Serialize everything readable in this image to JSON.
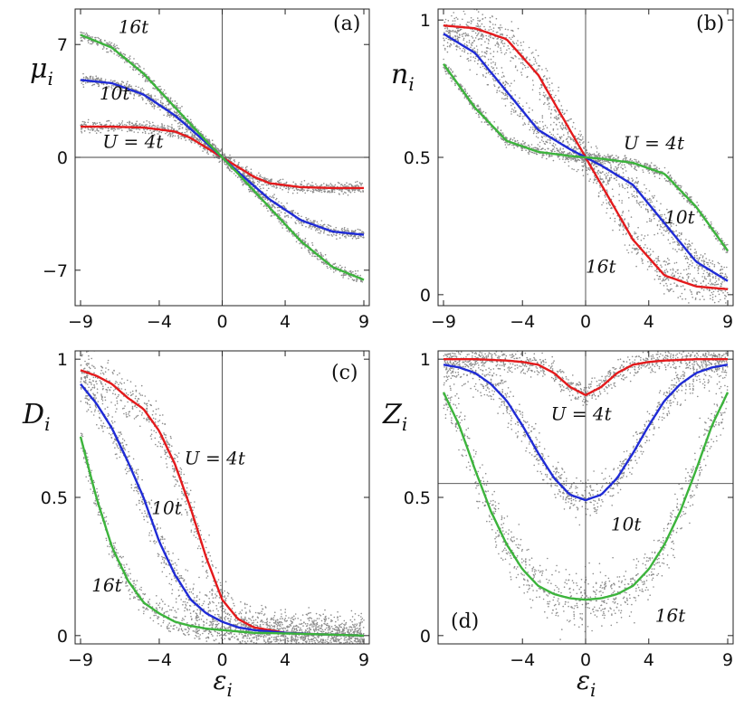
{
  "chart_data": [
    {
      "panel": "(a)",
      "type": "line",
      "ylabel": "μ",
      "ylabel_sub": "i",
      "xlabel": "",
      "xlim": [
        -9,
        9
      ],
      "ylim": [
        -9.2,
        9.2
      ],
      "xticks": [
        {
          "v": -9,
          "label": "−9"
        },
        {
          "v": -4,
          "label": "−4"
        },
        {
          "v": 0,
          "label": "0"
        },
        {
          "v": 4,
          "label": "4"
        },
        {
          "v": 9,
          "label": "9"
        }
      ],
      "yticks": [
        {
          "v": 7,
          "label": "7"
        },
        {
          "v": 0,
          "label": "0"
        },
        {
          "v": -7,
          "label": "−7"
        }
      ],
      "ref_x": 0,
      "ref_y": 0,
      "series": [
        {
          "name": "U = 4t",
          "color": "#e41a1c",
          "scatter_spread": 0.35,
          "x": [
            -9,
            -7,
            -5,
            -3,
            -2,
            -1,
            0,
            1,
            2,
            3,
            5,
            7,
            9
          ],
          "y": [
            1.9,
            1.9,
            1.85,
            1.6,
            1.2,
            0.6,
            0,
            -0.6,
            -1.2,
            -1.6,
            -1.85,
            -1.9,
            -1.9
          ]
        },
        {
          "name": "10t",
          "color": "#1f2bd6",
          "scatter_spread": 0.35,
          "x": [
            -9,
            -7,
            -5,
            -3,
            -1,
            0,
            1,
            3,
            5,
            7,
            9
          ],
          "y": [
            4.8,
            4.6,
            3.9,
            2.6,
            0.9,
            0,
            -0.9,
            -2.6,
            -3.9,
            -4.6,
            -4.8
          ]
        },
        {
          "name": "16t",
          "color": "#3cb43c",
          "scatter_spread": 0.35,
          "x": [
            -9,
            -7,
            -5,
            -3,
            -1,
            0,
            1,
            3,
            5,
            7,
            9
          ],
          "y": [
            7.6,
            6.8,
            5.2,
            3.1,
            1.0,
            0,
            -1.0,
            -3.1,
            -5.2,
            -6.8,
            -7.6
          ]
        }
      ],
      "annotations": [
        {
          "text": "16t",
          "x": -6.6,
          "y": 7.7
        },
        {
          "text": "10t",
          "x": -7.8,
          "y": 3.6
        },
        {
          "text": "U = 4t",
          "x": -7.6,
          "y": 0.6
        }
      ]
    },
    {
      "panel": "(b)",
      "type": "line",
      "ylabel": "n",
      "ylabel_sub": "i",
      "xlabel": "",
      "xlim": [
        -9,
        9
      ],
      "ylim": [
        -0.04,
        1.04
      ],
      "xticks": [
        {
          "v": -9,
          "label": "−9"
        },
        {
          "v": -4,
          "label": "−4"
        },
        {
          "v": 0,
          "label": "0"
        },
        {
          "v": 4,
          "label": "4"
        },
        {
          "v": 9,
          "label": "9"
        }
      ],
      "yticks": [
        {
          "v": 1,
          "label": "1"
        },
        {
          "v": 0.5,
          "label": "0.5"
        },
        {
          "v": 0,
          "label": "0"
        }
      ],
      "ref_x": 0,
      "ref_y": null,
      "series": [
        {
          "name": "16t",
          "color": "#e41a1c",
          "scatter_spread": 0.07,
          "x": [
            -9,
            -7,
            -5,
            -3,
            -2,
            -1,
            0,
            1,
            2,
            3,
            5,
            7,
            9
          ],
          "y": [
            0.98,
            0.97,
            0.93,
            0.8,
            0.7,
            0.6,
            0.5,
            0.4,
            0.3,
            0.2,
            0.07,
            0.03,
            0.02
          ]
        },
        {
          "name": "10t",
          "color": "#1f2bd6",
          "scatter_spread": 0.06,
          "x": [
            -9,
            -7,
            -5,
            -3,
            -1,
            0,
            1,
            3,
            5,
            7,
            9
          ],
          "y": [
            0.95,
            0.88,
            0.74,
            0.6,
            0.53,
            0.5,
            0.47,
            0.4,
            0.26,
            0.12,
            0.05
          ]
        },
        {
          "name": "U = 4t",
          "color": "#3cb43c",
          "scatter_spread": 0.02,
          "x": [
            -9,
            -7,
            -5,
            -3,
            -1,
            0,
            1,
            3,
            5,
            7,
            9
          ],
          "y": [
            0.84,
            0.68,
            0.56,
            0.52,
            0.505,
            0.5,
            0.495,
            0.48,
            0.44,
            0.32,
            0.16
          ]
        }
      ],
      "annotations": [
        {
          "text": "U = 4t",
          "x": 2.4,
          "y": 0.53
        },
        {
          "text": "10t",
          "x": 5.0,
          "y": 0.26
        },
        {
          "text": "16t",
          "x": 0.0,
          "y": 0.08
        }
      ]
    },
    {
      "panel": "(c)",
      "type": "line",
      "ylabel": "D",
      "ylabel_sub": "i",
      "xlabel": "ε",
      "xlabel_sub": "i",
      "xlim": [
        -9,
        9
      ],
      "ylim": [
        -0.03,
        1.03
      ],
      "xticks": [
        {
          "v": -9,
          "label": "−9"
        },
        {
          "v": -4,
          "label": "−4"
        },
        {
          "v": 0,
          "label": "0"
        },
        {
          "v": 4,
          "label": "4"
        },
        {
          "v": 9,
          "label": "9"
        }
      ],
      "yticks": [
        {
          "v": 1,
          "label": "1"
        },
        {
          "v": 0.5,
          "label": "0.5"
        },
        {
          "v": 0,
          "label": "0"
        }
      ],
      "ref_x": 0,
      "ref_y": null,
      "series": [
        {
          "name": "U = 4t",
          "color": "#e41a1c",
          "scatter_spread": 0.08,
          "x": [
            -9,
            -8,
            -7,
            -6,
            -5,
            -4,
            -3,
            -2,
            -1,
            0,
            1,
            2,
            4,
            6,
            9
          ],
          "y": [
            0.96,
            0.94,
            0.91,
            0.86,
            0.82,
            0.74,
            0.62,
            0.46,
            0.28,
            0.13,
            0.06,
            0.03,
            0.01,
            0.005,
            0.0
          ]
        },
        {
          "name": "10t",
          "color": "#1f2bd6",
          "scatter_spread": 0.08,
          "x": [
            -9,
            -8,
            -7,
            -6,
            -5,
            -4,
            -3,
            -2,
            -1,
            0,
            1,
            2,
            4,
            6,
            9
          ],
          "y": [
            0.91,
            0.84,
            0.75,
            0.63,
            0.5,
            0.34,
            0.22,
            0.13,
            0.08,
            0.05,
            0.03,
            0.02,
            0.01,
            0.005,
            0.0
          ]
        },
        {
          "name": "16t",
          "color": "#3cb43c",
          "scatter_spread": 0.05,
          "x": [
            -9,
            -8,
            -7,
            -6,
            -5,
            -4,
            -3,
            -2,
            -1,
            0,
            2,
            4,
            6,
            9
          ],
          "y": [
            0.72,
            0.5,
            0.32,
            0.2,
            0.12,
            0.08,
            0.05,
            0.035,
            0.025,
            0.02,
            0.01,
            0.008,
            0.005,
            0.0
          ]
        }
      ],
      "annotations": [
        {
          "text": "U = 4t",
          "x": -2.4,
          "y": 0.62
        },
        {
          "text": "10t",
          "x": -4.5,
          "y": 0.44
        },
        {
          "text": "16t",
          "x": -8.3,
          "y": 0.16
        }
      ]
    },
    {
      "panel": "(d)",
      "type": "line",
      "ylabel": "Z",
      "ylabel_sub": "i",
      "xlabel": "ε",
      "xlabel_sub": "i",
      "xlim": [
        -9,
        9
      ],
      "ylim": [
        -0.03,
        1.03
      ],
      "xticks": [
        {
          "v": -4,
          "label": "−4"
        },
        {
          "v": 0,
          "label": "0"
        },
        {
          "v": 4,
          "label": "4"
        },
        {
          "v": 9,
          "label": "9"
        }
      ],
      "yticks": [
        {
          "v": 1,
          "label": "1"
        },
        {
          "v": 0.5,
          "label": "0.5"
        },
        {
          "v": 0,
          "label": "0"
        }
      ],
      "ref_x": 0,
      "ref_y": 0.55,
      "series": [
        {
          "name": "U = 4t",
          "color": "#e41a1c",
          "scatter_spread": 0.04,
          "x": [
            -9,
            -7,
            -5,
            -4,
            -3,
            -2,
            -1,
            0,
            1,
            2,
            3,
            4,
            5,
            7,
            9
          ],
          "y": [
            1.0,
            1.0,
            0.995,
            0.99,
            0.98,
            0.95,
            0.9,
            0.87,
            0.9,
            0.95,
            0.98,
            0.99,
            0.995,
            1.0,
            1.0
          ]
        },
        {
          "name": "10t",
          "color": "#1f2bd6",
          "scatter_spread": 0.07,
          "x": [
            -9,
            -8,
            -7,
            -6,
            -5,
            -4,
            -3,
            -2,
            -1,
            0,
            1,
            2,
            3,
            4,
            5,
            6,
            7,
            8,
            9
          ],
          "y": [
            0.98,
            0.97,
            0.95,
            0.91,
            0.85,
            0.76,
            0.66,
            0.57,
            0.51,
            0.49,
            0.51,
            0.57,
            0.66,
            0.76,
            0.85,
            0.91,
            0.95,
            0.97,
            0.98
          ]
        },
        {
          "name": "16t",
          "color": "#3cb43c",
          "scatter_spread": 0.1,
          "x": [
            -9,
            -8,
            -7,
            -6,
            -5,
            -4,
            -3,
            -2,
            -1,
            0,
            1,
            2,
            3,
            4,
            5,
            6,
            7,
            8,
            9
          ],
          "y": [
            0.88,
            0.76,
            0.6,
            0.45,
            0.33,
            0.24,
            0.18,
            0.15,
            0.135,
            0.13,
            0.135,
            0.15,
            0.18,
            0.24,
            0.33,
            0.45,
            0.6,
            0.76,
            0.88
          ]
        }
      ],
      "annotations": [
        {
          "text": "U = 4t",
          "x": -2.2,
          "y": 0.78
        },
        {
          "text": "10t",
          "x": 1.6,
          "y": 0.38
        },
        {
          "text": "16t",
          "x": 4.4,
          "y": 0.05
        }
      ]
    }
  ]
}
